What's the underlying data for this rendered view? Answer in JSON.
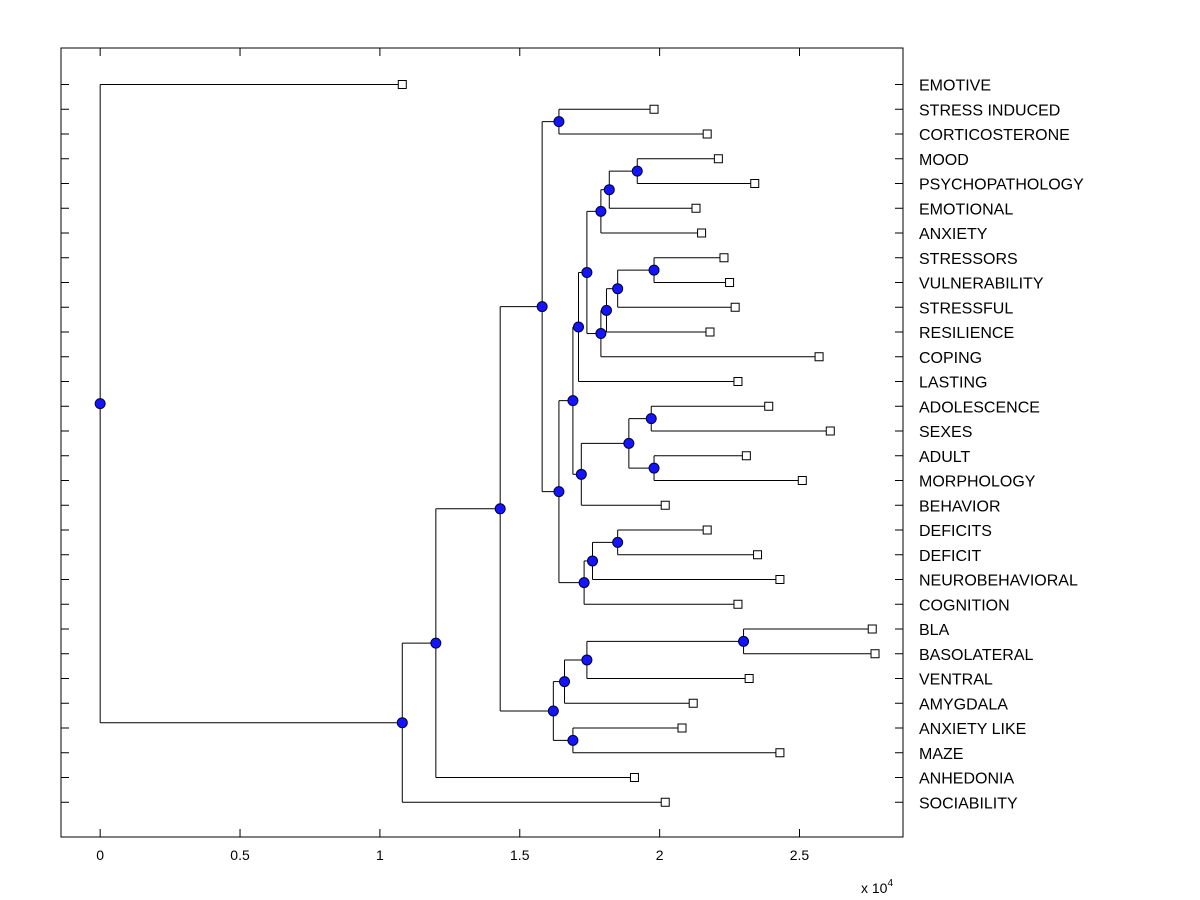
{
  "chart_data": {
    "type": "dendrogram",
    "title": "",
    "xlabel": "",
    "ylabel": "",
    "xlim": [
      -1400,
      28700
    ],
    "ylim": [
      0.5,
      31.5
    ],
    "x_ticks": [
      0,
      5000,
      10000,
      15000,
      20000,
      25000
    ],
    "x_tick_labels": [
      "0",
      "0.5",
      "1",
      "1.5",
      "2",
      "2.5"
    ],
    "x_exponent_base": "x 10",
    "x_exponent_power": "4",
    "grid": false,
    "marker_color": "#1414ff",
    "leaves": [
      {
        "label": "EMOTIVE",
        "x": 10800
      },
      {
        "label": "STRESS INDUCED",
        "x": 19800
      },
      {
        "label": "CORTICOSTERONE",
        "x": 21700
      },
      {
        "label": "MOOD",
        "x": 22100
      },
      {
        "label": "PSYCHOPATHOLOGY",
        "x": 23400
      },
      {
        "label": "EMOTIONAL",
        "x": 21300
      },
      {
        "label": "ANXIETY",
        "x": 21500
      },
      {
        "label": "STRESSORS",
        "x": 22300
      },
      {
        "label": "VULNERABILITY",
        "x": 22500
      },
      {
        "label": "STRESSFUL",
        "x": 22700
      },
      {
        "label": "RESILIENCE",
        "x": 21800
      },
      {
        "label": "COPING",
        "x": 25700
      },
      {
        "label": "LASTING",
        "x": 22800
      },
      {
        "label": "ADOLESCENCE",
        "x": 23900
      },
      {
        "label": "SEXES",
        "x": 26100
      },
      {
        "label": "ADULT",
        "x": 23100
      },
      {
        "label": "MORPHOLOGY",
        "x": 25100
      },
      {
        "label": "BEHAVIOR",
        "x": 20200
      },
      {
        "label": "DEFICITS",
        "x": 21700
      },
      {
        "label": "DEFICIT",
        "x": 23500
      },
      {
        "label": "NEUROBEHAVIORAL",
        "x": 24300
      },
      {
        "label": "COGNITION",
        "x": 22800
      },
      {
        "label": "BLA",
        "x": 27600
      },
      {
        "label": "BASOLATERAL",
        "x": 27700
      },
      {
        "label": "VENTRAL",
        "x": 23200
      },
      {
        "label": "AMYGDALA",
        "x": 21200
      },
      {
        "label": "ANXIETY LIKE",
        "x": 20800
      },
      {
        "label": "MAZE",
        "x": 24300
      },
      {
        "label": "ANHEDONIA",
        "x": 19100
      },
      {
        "label": "SOCIABILITY",
        "x": 20200
      }
    ],
    "nodes": [
      {
        "id": "n1",
        "x": 16400,
        "children": [
          "STRESS INDUCED",
          "CORTICOSTERONE"
        ]
      },
      {
        "id": "n2",
        "x": 19200,
        "children": [
          "MOOD",
          "PSYCHOPATHOLOGY"
        ]
      },
      {
        "id": "n3",
        "x": 18200,
        "children": [
          "n2",
          "EMOTIONAL"
        ]
      },
      {
        "id": "n4",
        "x": 17900,
        "children": [
          "n3",
          "ANXIETY"
        ]
      },
      {
        "id": "n5",
        "x": 19800,
        "children": [
          "STRESSORS",
          "VULNERABILITY"
        ]
      },
      {
        "id": "n6",
        "x": 18500,
        "children": [
          "n5",
          "STRESSFUL"
        ]
      },
      {
        "id": "n7",
        "x": 18100,
        "children": [
          "n6",
          "RESILIENCE"
        ]
      },
      {
        "id": "n8",
        "x": 17900,
        "children": [
          "n7",
          "COPING"
        ]
      },
      {
        "id": "n9",
        "x": 17400,
        "children": [
          "n4",
          "n8"
        ]
      },
      {
        "id": "n10",
        "x": 17100,
        "children": [
          "n9",
          "LASTING"
        ]
      },
      {
        "id": "n11",
        "x": 19700,
        "children": [
          "ADOLESCENCE",
          "SEXES"
        ]
      },
      {
        "id": "n12",
        "x": 19800,
        "children": [
          "ADULT",
          "MORPHOLOGY"
        ]
      },
      {
        "id": "n13",
        "x": 18900,
        "children": [
          "n11",
          "n12"
        ]
      },
      {
        "id": "n14",
        "x": 17200,
        "children": [
          "n13",
          "BEHAVIOR"
        ]
      },
      {
        "id": "n15",
        "x": 16900,
        "children": [
          "n10",
          "n14"
        ]
      },
      {
        "id": "n16",
        "x": 18500,
        "children": [
          "DEFICITS",
          "DEFICIT"
        ]
      },
      {
        "id": "n17",
        "x": 17600,
        "children": [
          "n16",
          "NEUROBEHAVIORAL"
        ]
      },
      {
        "id": "n18",
        "x": 17300,
        "children": [
          "n17",
          "COGNITION"
        ]
      },
      {
        "id": "n19",
        "x": 16400,
        "children": [
          "n15",
          "n18"
        ]
      },
      {
        "id": "n20",
        "x": 15800,
        "children": [
          "n1",
          "n19"
        ]
      },
      {
        "id": "n21",
        "x": 23000,
        "children": [
          "BLA",
          "BASOLATERAL"
        ]
      },
      {
        "id": "n22",
        "x": 17400,
        "children": [
          "n21",
          "VENTRAL"
        ]
      },
      {
        "id": "n23",
        "x": 16600,
        "children": [
          "n22",
          "AMYGDALA"
        ]
      },
      {
        "id": "n24",
        "x": 16900,
        "children": [
          "ANXIETY LIKE",
          "MAZE"
        ]
      },
      {
        "id": "n25",
        "x": 16200,
        "children": [
          "n23",
          "n24"
        ]
      },
      {
        "id": "n26",
        "x": 14300,
        "children": [
          "n20",
          "n25"
        ]
      },
      {
        "id": "n27",
        "x": 12000,
        "children": [
          "n26",
          "ANHEDONIA"
        ]
      },
      {
        "id": "n28",
        "x": 10800,
        "children": [
          "n27",
          "SOCIABILITY"
        ]
      },
      {
        "id": "n29",
        "x": 0,
        "children": [
          "EMOTIVE",
          "n28"
        ]
      }
    ]
  }
}
